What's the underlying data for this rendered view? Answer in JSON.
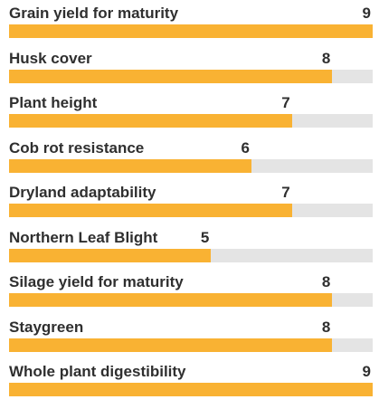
{
  "ratings": {
    "max": 9,
    "fill_color": "#f9b233",
    "track_color": "#e4e4e4",
    "items": [
      {
        "label": "Grain yield for maturity",
        "score": 9
      },
      {
        "label": "Husk cover",
        "score": 8
      },
      {
        "label": "Plant height",
        "score": 7
      },
      {
        "label": "Cob rot resistance",
        "score": 6
      },
      {
        "label": "Dryland adaptability",
        "score": 7
      },
      {
        "label": "Northern Leaf Blight",
        "score": 5
      },
      {
        "label": "Silage yield for maturity",
        "score": 8
      },
      {
        "label": "Staygreen",
        "score": 8
      },
      {
        "label": "Whole plant digestibility",
        "score": 9
      }
    ]
  }
}
